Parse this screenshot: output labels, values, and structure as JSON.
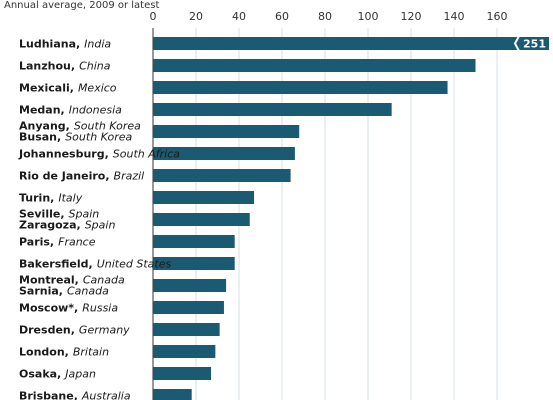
{
  "chart_data": {
    "type": "bar",
    "orientation": "horizontal",
    "title": "",
    "subtitle": "Annual average, 2009 or latest",
    "xlabel": "",
    "ylabel": "",
    "xlim": [
      0,
      170
    ],
    "xticks": [
      0,
      20,
      40,
      60,
      80,
      100,
      120,
      140,
      160
    ],
    "grid": true,
    "colors": {
      "bar": "#1a5a72",
      "grid": "#c8d7df",
      "axis": "#333333"
    },
    "rows": [
      {
        "lines": [
          {
            "city": "Ludhiana",
            "country": "India"
          }
        ],
        "value": 251,
        "overflow_label": "251"
      },
      {
        "lines": [
          {
            "city": "Lanzhou",
            "country": "China"
          }
        ],
        "value": 150
      },
      {
        "lines": [
          {
            "city": "Mexicali",
            "country": "Mexico"
          }
        ],
        "value": 137
      },
      {
        "lines": [
          {
            "city": "Medan",
            "country": "Indonesia"
          }
        ],
        "value": 111
      },
      {
        "lines": [
          {
            "city": "Anyang",
            "country": "South Korea"
          },
          {
            "city": "Busan",
            "country": "South Korea"
          }
        ],
        "value": 68
      },
      {
        "lines": [
          {
            "city": "Johannesburg",
            "country": "South Africa"
          }
        ],
        "value": 66
      },
      {
        "lines": [
          {
            "city": "Rio de Janeiro",
            "country": "Brazil"
          }
        ],
        "value": 64
      },
      {
        "lines": [
          {
            "city": "Turin",
            "country": "Italy"
          }
        ],
        "value": 47
      },
      {
        "lines": [
          {
            "city": "Seville",
            "country": "Spain"
          },
          {
            "city": "Zaragoza",
            "country": "Spain"
          }
        ],
        "value": 45
      },
      {
        "lines": [
          {
            "city": "Paris",
            "country": "France"
          }
        ],
        "value": 38
      },
      {
        "lines": [
          {
            "city": "Bakersfield",
            "country": "United States"
          }
        ],
        "value": 38
      },
      {
        "lines": [
          {
            "city": "Montreal",
            "country": "Canada"
          },
          {
            "city": "Sarnia",
            "country": "Canada"
          }
        ],
        "value": 34
      },
      {
        "lines": [
          {
            "city": "Moscow*",
            "country": "Russia"
          }
        ],
        "value": 33
      },
      {
        "lines": [
          {
            "city": "Dresden",
            "country": "Germany"
          }
        ],
        "value": 31
      },
      {
        "lines": [
          {
            "city": "London",
            "country": "Britain"
          }
        ],
        "value": 29
      },
      {
        "lines": [
          {
            "city": "Osaka",
            "country": "Japan"
          }
        ],
        "value": 27
      },
      {
        "lines": [
          {
            "city": "Brisbane",
            "country": "Australia"
          }
        ],
        "value": 18
      }
    ]
  }
}
